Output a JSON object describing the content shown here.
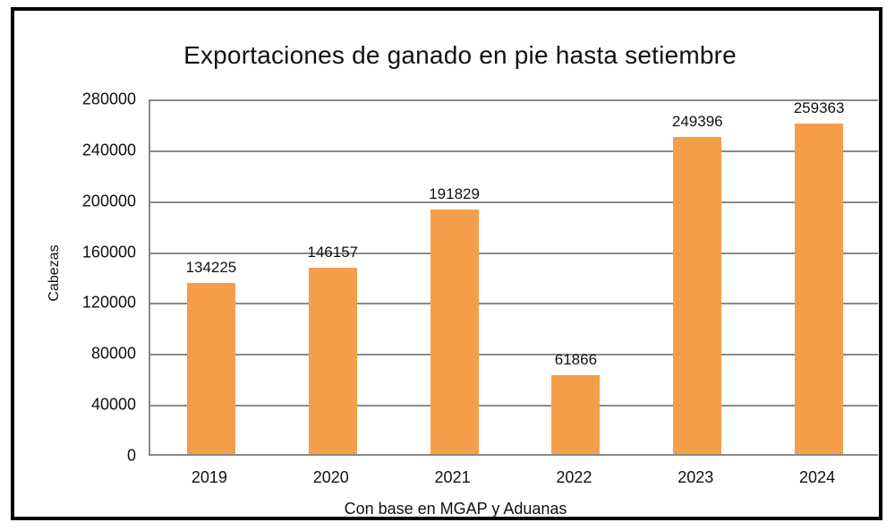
{
  "title": "Exportaciones de ganado en pie hasta setiembre",
  "chart_data": {
    "type": "bar",
    "title": "Exportaciones de ganado en pie hasta setiembre",
    "categories": [
      "2019",
      "2020",
      "2021",
      "2022",
      "2023",
      "2024"
    ],
    "values": [
      134225,
      146157,
      191829,
      61866,
      249396,
      259363
    ],
    "data_labels": [
      "134225",
      "146157",
      "191829",
      "61866",
      "249396",
      "259363"
    ],
    "xlabel": "Con base en MGAP y Aduanas",
    "ylabel": "Cabezas",
    "ylim": [
      0,
      280000
    ],
    "ytick_step": 40000,
    "yticks": [
      0,
      40000,
      80000,
      120000,
      160000,
      200000,
      240000,
      280000
    ],
    "grid": true,
    "legend_position": "none",
    "bar_color": "#F49E4A",
    "gridline_color": "#8a8a8a",
    "frame_color": "#000000"
  }
}
